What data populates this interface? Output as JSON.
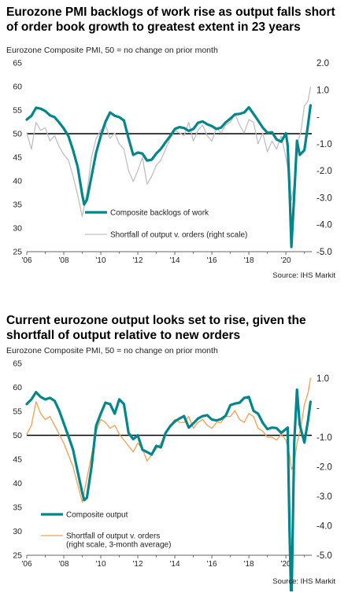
{
  "charts": [
    {
      "title": "Eurozone PMI backlogs of work rise as output falls short of order book growth to greatest extent in 23 years",
      "subtitle": "Eurozone Composite PMI, 50 = no change on prior month",
      "source": "Source: IHS Markit",
      "legend": [
        "Composite backlogs of work",
        "Shortfall of output v. orders (right scale)"
      ]
    },
    {
      "title": "Current eurozone output looks set to rise, given the shortfall of output relative to new orders",
      "subtitle": "Eurozone Composite PMI, 50 = no change on prior month",
      "source": "Source: IHS Markit",
      "legend": [
        "Composite output",
        "Shortfall of output v. orders",
        "(right scale, 3-month average)"
      ]
    }
  ],
  "chart_data": [
    {
      "type": "line",
      "x_unit": "year",
      "x_ticks": [
        "'06",
        "'08",
        "'10",
        "'12",
        "'14",
        "'16",
        "'18",
        "'20"
      ],
      "x_tick_values": [
        2006,
        2008,
        2010,
        2012,
        2014,
        2016,
        2018,
        2020
      ],
      "xlim": [
        2006,
        2021.4
      ],
      "ylim_left": [
        25,
        65
      ],
      "yticks_left": [
        "65",
        "60",
        "55",
        "50",
        "45",
        "40",
        "35",
        "30",
        "25"
      ],
      "ylim_right": [
        -5,
        2
      ],
      "yticks_right": [
        "2.0",
        "1.0",
        "-",
        "-1.0",
        "-2.0",
        "-3.0",
        "-4.0",
        "-5.0"
      ],
      "reference_line_left": 50,
      "legend_position": "bottom-center",
      "series": [
        {
          "name": "Composite backlogs of work",
          "axis": "left",
          "color": "#00868B",
          "x": [
            2006.0,
            2006.25,
            2006.5,
            2006.75,
            2007.0,
            2007.25,
            2007.5,
            2007.75,
            2008.0,
            2008.25,
            2008.5,
            2008.75,
            2009.0,
            2009.1,
            2009.25,
            2009.5,
            2009.75,
            2010.0,
            2010.25,
            2010.5,
            2010.75,
            2011.0,
            2011.25,
            2011.5,
            2011.75,
            2012.0,
            2012.25,
            2012.5,
            2012.75,
            2013.0,
            2013.25,
            2013.5,
            2013.75,
            2014.0,
            2014.25,
            2014.5,
            2014.75,
            2015.0,
            2015.25,
            2015.5,
            2015.75,
            2016.0,
            2016.25,
            2016.5,
            2016.75,
            2017.0,
            2017.25,
            2017.5,
            2017.75,
            2018.0,
            2018.25,
            2018.5,
            2018.75,
            2019.0,
            2019.25,
            2019.5,
            2019.75,
            2020.0,
            2020.1,
            2020.2,
            2020.3,
            2020.45,
            2020.6,
            2020.75,
            2021.0,
            2021.2,
            2021.33
          ],
          "y": [
            53,
            53.8,
            55.5,
            55.3,
            54.8,
            53.9,
            53.5,
            52.4,
            51.1,
            49.5,
            46.5,
            43,
            37,
            35,
            36,
            41,
            46,
            49.5,
            52.5,
            54.5,
            53.8,
            53.5,
            52.8,
            49,
            45.5,
            46,
            45.8,
            44.3,
            44.5,
            45.8,
            46.8,
            48.2,
            49.5,
            51,
            51.4,
            51.2,
            50.6,
            51,
            52.3,
            52.6,
            52,
            51.6,
            51,
            51.3,
            52.4,
            53.2,
            54.1,
            54.2,
            54.5,
            55.6,
            54.2,
            52.8,
            51.3,
            50.2,
            50.3,
            48.8,
            48.3,
            50.1,
            47.5,
            38,
            26,
            37,
            48.5,
            45.5,
            46.5,
            52,
            56
          ]
        },
        {
          "name": "Shortfall of output v. orders (right scale)",
          "axis": "right",
          "color": "#C0C0C0",
          "x": [
            2006.0,
            2006.25,
            2006.5,
            2006.75,
            2007.0,
            2007.25,
            2007.5,
            2007.75,
            2008.0,
            2008.25,
            2008.5,
            2008.75,
            2009.0,
            2009.25,
            2009.5,
            2009.75,
            2010.0,
            2010.25,
            2010.5,
            2010.75,
            2011.0,
            2011.25,
            2011.5,
            2011.75,
            2012.0,
            2012.25,
            2012.5,
            2012.75,
            2013.0,
            2013.25,
            2013.5,
            2013.75,
            2014.0,
            2014.25,
            2014.5,
            2014.75,
            2015.0,
            2015.25,
            2015.5,
            2015.75,
            2016.0,
            2016.25,
            2016.5,
            2016.75,
            2017.0,
            2017.25,
            2017.5,
            2017.75,
            2018.0,
            2018.25,
            2018.5,
            2018.75,
            2019.0,
            2019.25,
            2019.5,
            2019.75,
            2020.0,
            2020.2,
            2020.3,
            2020.45,
            2020.6,
            2020.8,
            2021.0,
            2021.2,
            2021.33
          ],
          "y": [
            -0.6,
            -1.2,
            -0.2,
            -0.5,
            -0.4,
            -0.9,
            -0.7,
            -1.1,
            -1.4,
            -1.6,
            -2.2,
            -2.9,
            -3.7,
            -2.8,
            -1.5,
            -0.8,
            -0.5,
            -0.3,
            -0.8,
            -0.6,
            -1.0,
            -1.2,
            -2.0,
            -2.4,
            -2.0,
            -1.5,
            -2.5,
            -2.2,
            -1.8,
            -1.6,
            -1.2,
            -0.8,
            -0.5,
            -0.6,
            -0.7,
            -0.2,
            -0.9,
            -0.5,
            -0.3,
            -0.7,
            -0.9,
            -0.4,
            -0.6,
            -0.3,
            -0.2,
            0.1,
            -0.3,
            -0.6,
            -0.1,
            -0.2,
            -1.0,
            -0.6,
            -1.3,
            -0.9,
            -1.2,
            -0.7,
            -1.5,
            -2.3,
            -3.1,
            -2.5,
            -1.0,
            -0.6,
            0.4,
            0.6,
            1.1
          ]
        }
      ]
    },
    {
      "type": "line",
      "x_unit": "year",
      "x_ticks": [
        "'06",
        "'08",
        "'10",
        "'12",
        "'14",
        "'16",
        "'18",
        "'20"
      ],
      "x_tick_values": [
        2006,
        2008,
        2010,
        2012,
        2014,
        2016,
        2018,
        2020
      ],
      "xlim": [
        2006,
        2021.4
      ],
      "ylim_left": [
        25,
        65
      ],
      "yticks_left": [
        "65",
        "60",
        "55",
        "50",
        "45",
        "40",
        "35",
        "30",
        "25"
      ],
      "ylim_right": [
        -5,
        1.5
      ],
      "yticks_right": [
        "1.0",
        "-",
        "-1.0",
        "-2.0",
        "-3.0",
        "-4.0",
        "-5.0"
      ],
      "reference_line_left": 50,
      "legend_position": "bottom-left",
      "series": [
        {
          "name": "Composite output",
          "axis": "left",
          "color": "#00868B",
          "x": [
            2006.0,
            2006.25,
            2006.5,
            2006.75,
            2007.0,
            2007.25,
            2007.5,
            2007.75,
            2008.0,
            2008.25,
            2008.5,
            2008.75,
            2009.0,
            2009.1,
            2009.25,
            2009.5,
            2009.75,
            2010.0,
            2010.25,
            2010.5,
            2010.75,
            2011.0,
            2011.25,
            2011.5,
            2011.75,
            2012.0,
            2012.25,
            2012.5,
            2012.75,
            2013.0,
            2013.25,
            2013.5,
            2013.75,
            2014.0,
            2014.25,
            2014.5,
            2014.75,
            2015.0,
            2015.25,
            2015.5,
            2015.75,
            2016.0,
            2016.25,
            2016.5,
            2016.75,
            2017.0,
            2017.25,
            2017.5,
            2017.75,
            2018.0,
            2018.25,
            2018.5,
            2018.75,
            2019.0,
            2019.25,
            2019.5,
            2019.75,
            2020.0,
            2020.1,
            2020.2,
            2020.3,
            2020.45,
            2020.6,
            2020.75,
            2021.0,
            2021.2,
            2021.33
          ],
          "y": [
            56.5,
            57.5,
            59,
            58,
            57.5,
            57.8,
            57.2,
            55.2,
            52.5,
            49.8,
            47,
            42.5,
            38,
            36.5,
            37,
            43.5,
            52,
            54.5,
            56.8,
            56.5,
            54.5,
            57.5,
            56.5,
            50.5,
            49.2,
            50,
            47,
            46.5,
            46,
            47.8,
            47.5,
            50.5,
            51.9,
            52.9,
            53.5,
            54,
            51.6,
            52.5,
            53.5,
            54,
            54.2,
            53.3,
            53.1,
            53.4,
            54.1,
            56.3,
            56.6,
            56.8,
            57.8,
            58,
            55.1,
            54.5,
            52.6,
            51.3,
            51.6,
            51.5,
            50.5,
            51.3,
            51.6,
            29.7,
            13.6,
            48.5,
            59.5,
            52.2,
            48.5,
            53.2,
            57
          ]
        },
        {
          "name": "Shortfall of output v. orders (right scale, 3-month average)",
          "axis": "right",
          "color": "#F0A050",
          "x": [
            2006.0,
            2006.25,
            2006.5,
            2006.75,
            2007.0,
            2007.25,
            2007.5,
            2007.75,
            2008.0,
            2008.25,
            2008.5,
            2008.75,
            2009.0,
            2009.25,
            2009.5,
            2009.75,
            2010.0,
            2010.25,
            2010.5,
            2010.75,
            2011.0,
            2011.25,
            2011.5,
            2011.75,
            2012.0,
            2012.25,
            2012.5,
            2012.75,
            2013.0,
            2013.25,
            2013.5,
            2013.75,
            2014.0,
            2014.25,
            2014.5,
            2014.75,
            2015.0,
            2015.25,
            2015.5,
            2015.75,
            2016.0,
            2016.25,
            2016.5,
            2016.75,
            2017.0,
            2017.25,
            2017.5,
            2017.75,
            2018.0,
            2018.25,
            2018.5,
            2018.75,
            2019.0,
            2019.25,
            2019.5,
            2019.75,
            2020.0,
            2020.2,
            2020.3,
            2020.45,
            2020.6,
            2020.8,
            2021.0,
            2021.2,
            2021.33
          ],
          "y": [
            -0.9,
            -0.6,
            0.2,
            -0.2,
            -0.4,
            -0.3,
            -0.6,
            -0.9,
            -1.2,
            -1.6,
            -2.0,
            -2.6,
            -3.2,
            -2.4,
            -1.6,
            -0.8,
            -0.4,
            -0.5,
            -0.7,
            -0.6,
            -0.9,
            -1.1,
            -1.3,
            -1.5,
            -1.2,
            -1.4,
            -1.8,
            -1.6,
            -1.4,
            -1.2,
            -0.9,
            -0.6,
            -0.4,
            -0.5,
            -0.5,
            -0.3,
            -0.7,
            -0.5,
            -0.4,
            -0.6,
            -0.7,
            -0.5,
            -0.5,
            -0.3,
            -0.3,
            -0.1,
            -0.4,
            -0.5,
            -0.2,
            -0.3,
            -0.7,
            -0.8,
            -1.0,
            -1.0,
            -1.1,
            -0.9,
            -1.1,
            -1.6,
            -2.1,
            -1.9,
            -1.2,
            -0.7,
            0.1,
            0.5,
            1.0
          ]
        }
      ]
    }
  ]
}
